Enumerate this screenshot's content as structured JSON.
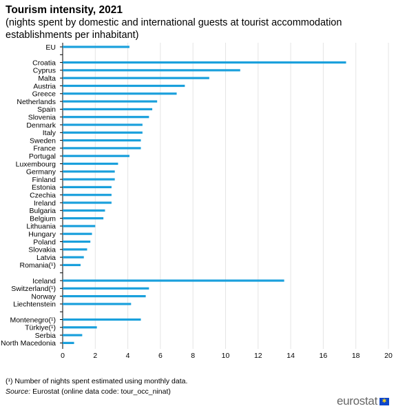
{
  "chart_data": {
    "type": "bar",
    "orientation": "horizontal",
    "title": "Tourism intensity, 2021",
    "subtitle": "(nights spent by domestic and international guests at tourist accommodation establishments per inhabitant)",
    "xlim": [
      0,
      20
    ],
    "x_ticks": [
      0,
      2,
      4,
      6,
      8,
      10,
      12,
      14,
      16,
      18,
      20
    ],
    "grid": "vertical",
    "bar_color": "#1aa0dc",
    "groups": [
      {
        "categories": [
          "EU"
        ],
        "values": [
          4.1
        ]
      },
      {
        "categories": [
          "Croatia",
          "Cyprus",
          "Malta",
          "Austria",
          "Greece",
          "Netherlands",
          "Spain",
          "Slovenia",
          "Denmark",
          "Italy",
          "Sweden",
          "France",
          "Portugal",
          "Luxembourg",
          "Germany",
          "Finland",
          "Estonia",
          "Czechia",
          "Ireland",
          "Bulgaria",
          "Belgium",
          "Lithuania",
          "Hungary",
          "Poland",
          "Slovakia",
          "Latvia",
          "Romania(¹)"
        ],
        "values": [
          17.4,
          10.9,
          9.0,
          7.5,
          7.0,
          5.8,
          5.5,
          5.3,
          4.9,
          4.9,
          4.8,
          4.8,
          4.1,
          3.4,
          3.2,
          3.2,
          3.0,
          3.0,
          3.0,
          2.6,
          2.5,
          2.0,
          1.8,
          1.7,
          1.5,
          1.3,
          1.1
        ]
      },
      {
        "categories": [
          "Iceland",
          "Switzerland(¹)",
          "Norway",
          "Liechtenstein"
        ],
        "values": [
          13.6,
          5.3,
          5.1,
          4.2
        ]
      },
      {
        "categories": [
          "Montenegro(¹)",
          "Türkiye(¹)",
          "Serbia",
          "North Macedonia"
        ],
        "values": [
          4.8,
          2.1,
          1.2,
          0.7
        ]
      }
    ]
  },
  "footnote": "(¹) Number of nights spent estimated using monthly data.",
  "source": {
    "label": "Source:",
    "text": "Eurostat (online data code: tour_occ_ninat)"
  },
  "logo": {
    "text": "eurostat",
    "flag_stars": "✱"
  }
}
